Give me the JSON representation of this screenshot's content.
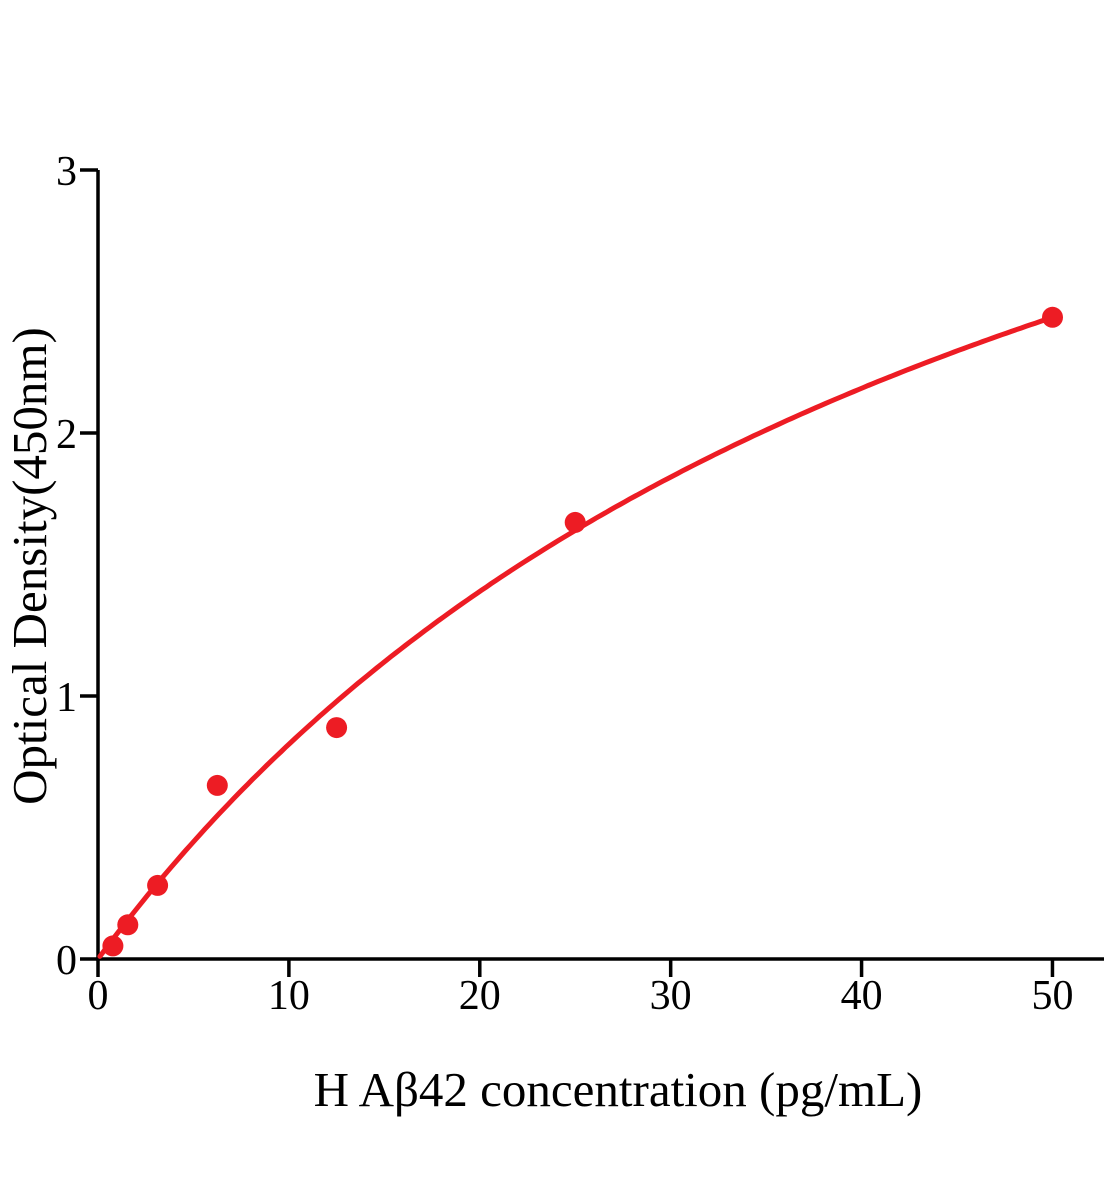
{
  "chart_data": {
    "type": "scatter",
    "title": "",
    "xlabel": "H Aβ42 concentration (pg/mL)",
    "ylabel": "Optical Density(450nm)",
    "points": [
      {
        "x": 0.78,
        "y": 0.05
      },
      {
        "x": 1.56,
        "y": 0.13
      },
      {
        "x": 3.12,
        "y": 0.28
      },
      {
        "x": 6.25,
        "y": 0.66
      },
      {
        "x": 12.5,
        "y": 0.88
      },
      {
        "x": 25,
        "y": 1.66
      },
      {
        "x": 50,
        "y": 2.44
      }
    ],
    "x_ticks": [
      0,
      10,
      20,
      30,
      40,
      50
    ],
    "x_tick_labels": [
      "0",
      "10",
      "20",
      "30",
      "40",
      "50"
    ],
    "y_ticks": [
      0,
      1,
      2,
      3
    ],
    "y_tick_labels": [
      "0",
      "1",
      "2",
      "3"
    ],
    "xlim": [
      0,
      52.7
    ],
    "ylim": [
      0,
      3
    ],
    "grid": false,
    "legend": null,
    "curve_fit": {
      "type": "michaelis_menten",
      "formula": "y = vmax * x / (k + x)",
      "vmax": 4.85,
      "k": 49.4,
      "x_start": 0.1,
      "x_end": 50
    },
    "marker": {
      "shape": "circle",
      "radius_px": 10.5
    },
    "colors": {
      "series": "#ED1C24",
      "axis": "#000000",
      "text": "#000000",
      "background": "#FFFFFF"
    }
  }
}
